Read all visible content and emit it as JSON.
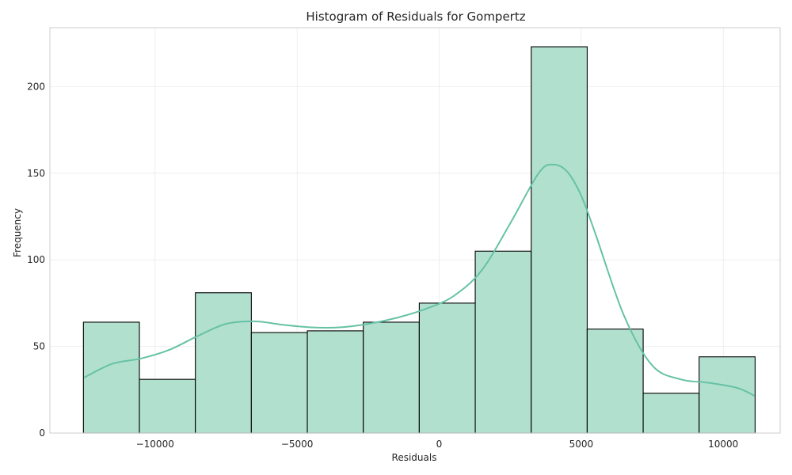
{
  "chart_data": {
    "type": "histogram",
    "title": "Histogram of Residuals for Gompertz",
    "xlabel": "Residuals",
    "ylabel": "Frequency",
    "xlim": [
      -13700,
      12000
    ],
    "ylim": [
      0,
      234
    ],
    "xticks": [
      -10000,
      -5000,
      0,
      5000,
      10000
    ],
    "xtick_labels": [
      "−10000",
      "−5000",
      "0",
      "5000",
      "10000"
    ],
    "yticks": [
      0,
      50,
      100,
      150,
      200
    ],
    "ytick_labels": [
      "0",
      "50",
      "100",
      "150",
      "200"
    ],
    "bin_edges": [
      -12520,
      -10550,
      -8580,
      -6610,
      -4640,
      -2670,
      -700,
      1270,
      3240,
      5210,
      7180,
      9150,
      11120
    ],
    "values": [
      64,
      31,
      81,
      58,
      59,
      64,
      75,
      105,
      223,
      60,
      23,
      44
    ],
    "kde": {
      "x": [
        -12500,
        -11500,
        -10500,
        -9500,
        -8500,
        -7500,
        -6500,
        -5500,
        -4500,
        -3500,
        -2500,
        -1500,
        -500,
        500,
        1500,
        2500,
        3500,
        4000,
        4500,
        5000,
        5500,
        6500,
        7500,
        8500,
        9500,
        10500,
        11100
      ],
      "y": [
        32,
        40,
        43,
        48,
        56,
        63,
        64.5,
        62.5,
        61,
        61,
        63,
        66.5,
        71.5,
        79,
        94,
        121,
        150,
        155,
        151,
        137,
        115,
        68,
        39,
        31,
        29,
        26,
        21.5
      ]
    },
    "grid": true,
    "legend": "none",
    "colors": {
      "bar_fill": "#b2e0cf",
      "bar_edge": "#000000",
      "kde_line": "#66c2a5",
      "grid": "#ebebeb",
      "frame": "#cccccc"
    }
  }
}
